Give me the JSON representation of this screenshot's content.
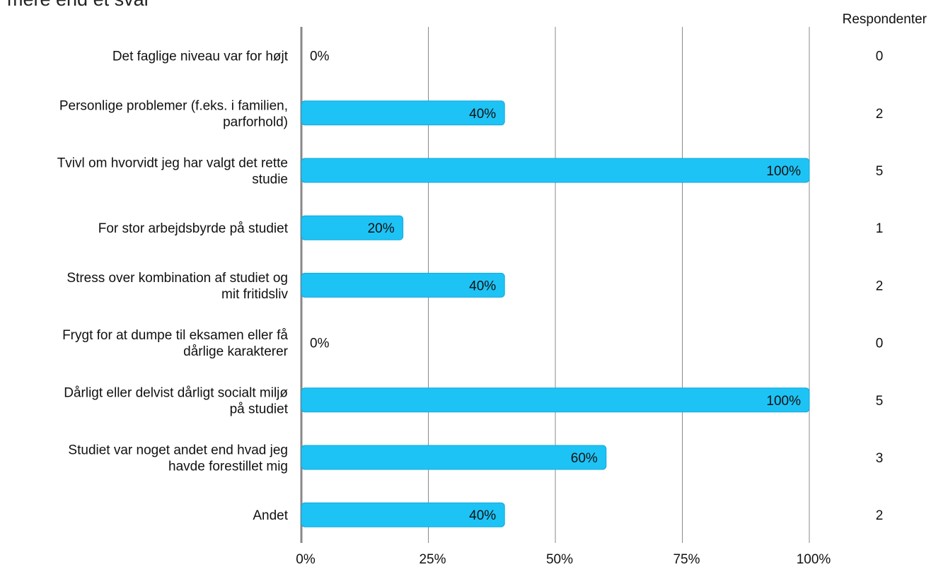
{
  "title": "mere end et svar",
  "respondents_header": "Respondenter",
  "colors": {
    "bar": "#1EC3F5",
    "bar_stroke": "#0FA8DA",
    "axis": "#888888",
    "grid": "#8a8a8a",
    "text": "#111111"
  },
  "chart_data": {
    "type": "bar",
    "orientation": "horizontal",
    "categories": [
      [
        "Det faglige niveau var for højt"
      ],
      [
        "Personlige problemer (f.eks. i familien,",
        "parforhold)"
      ],
      [
        "Tvivl om hvorvidt jeg har valgt det rette",
        "studie"
      ],
      [
        "For stor arbejdsbyrde på studiet"
      ],
      [
        "Stress over kombination af studiet og",
        "mit fritidsliv"
      ],
      [
        "Frygt for at dumpe til eksamen eller få",
        "dårlige karakterer"
      ],
      [
        "Dårligt eller delvist dårligt socialt miljø",
        "på studiet"
      ],
      [
        "Studiet var noget andet end hvad jeg",
        "havde forestillet mig"
      ],
      [
        "Andet"
      ]
    ],
    "values": [
      0,
      40,
      100,
      20,
      40,
      0,
      100,
      60,
      40
    ],
    "value_labels": [
      "0%",
      "40%",
      "100%",
      "20%",
      "40%",
      "0%",
      "100%",
      "60%",
      "40%"
    ],
    "respondents": [
      0,
      2,
      5,
      1,
      2,
      0,
      5,
      3,
      2
    ],
    "xlim": [
      0,
      100
    ],
    "xticks": [
      0,
      25,
      50,
      75,
      100
    ],
    "xtick_labels": [
      "0%",
      "25%",
      "50%",
      "75%",
      "100%"
    ],
    "grid": true
  }
}
